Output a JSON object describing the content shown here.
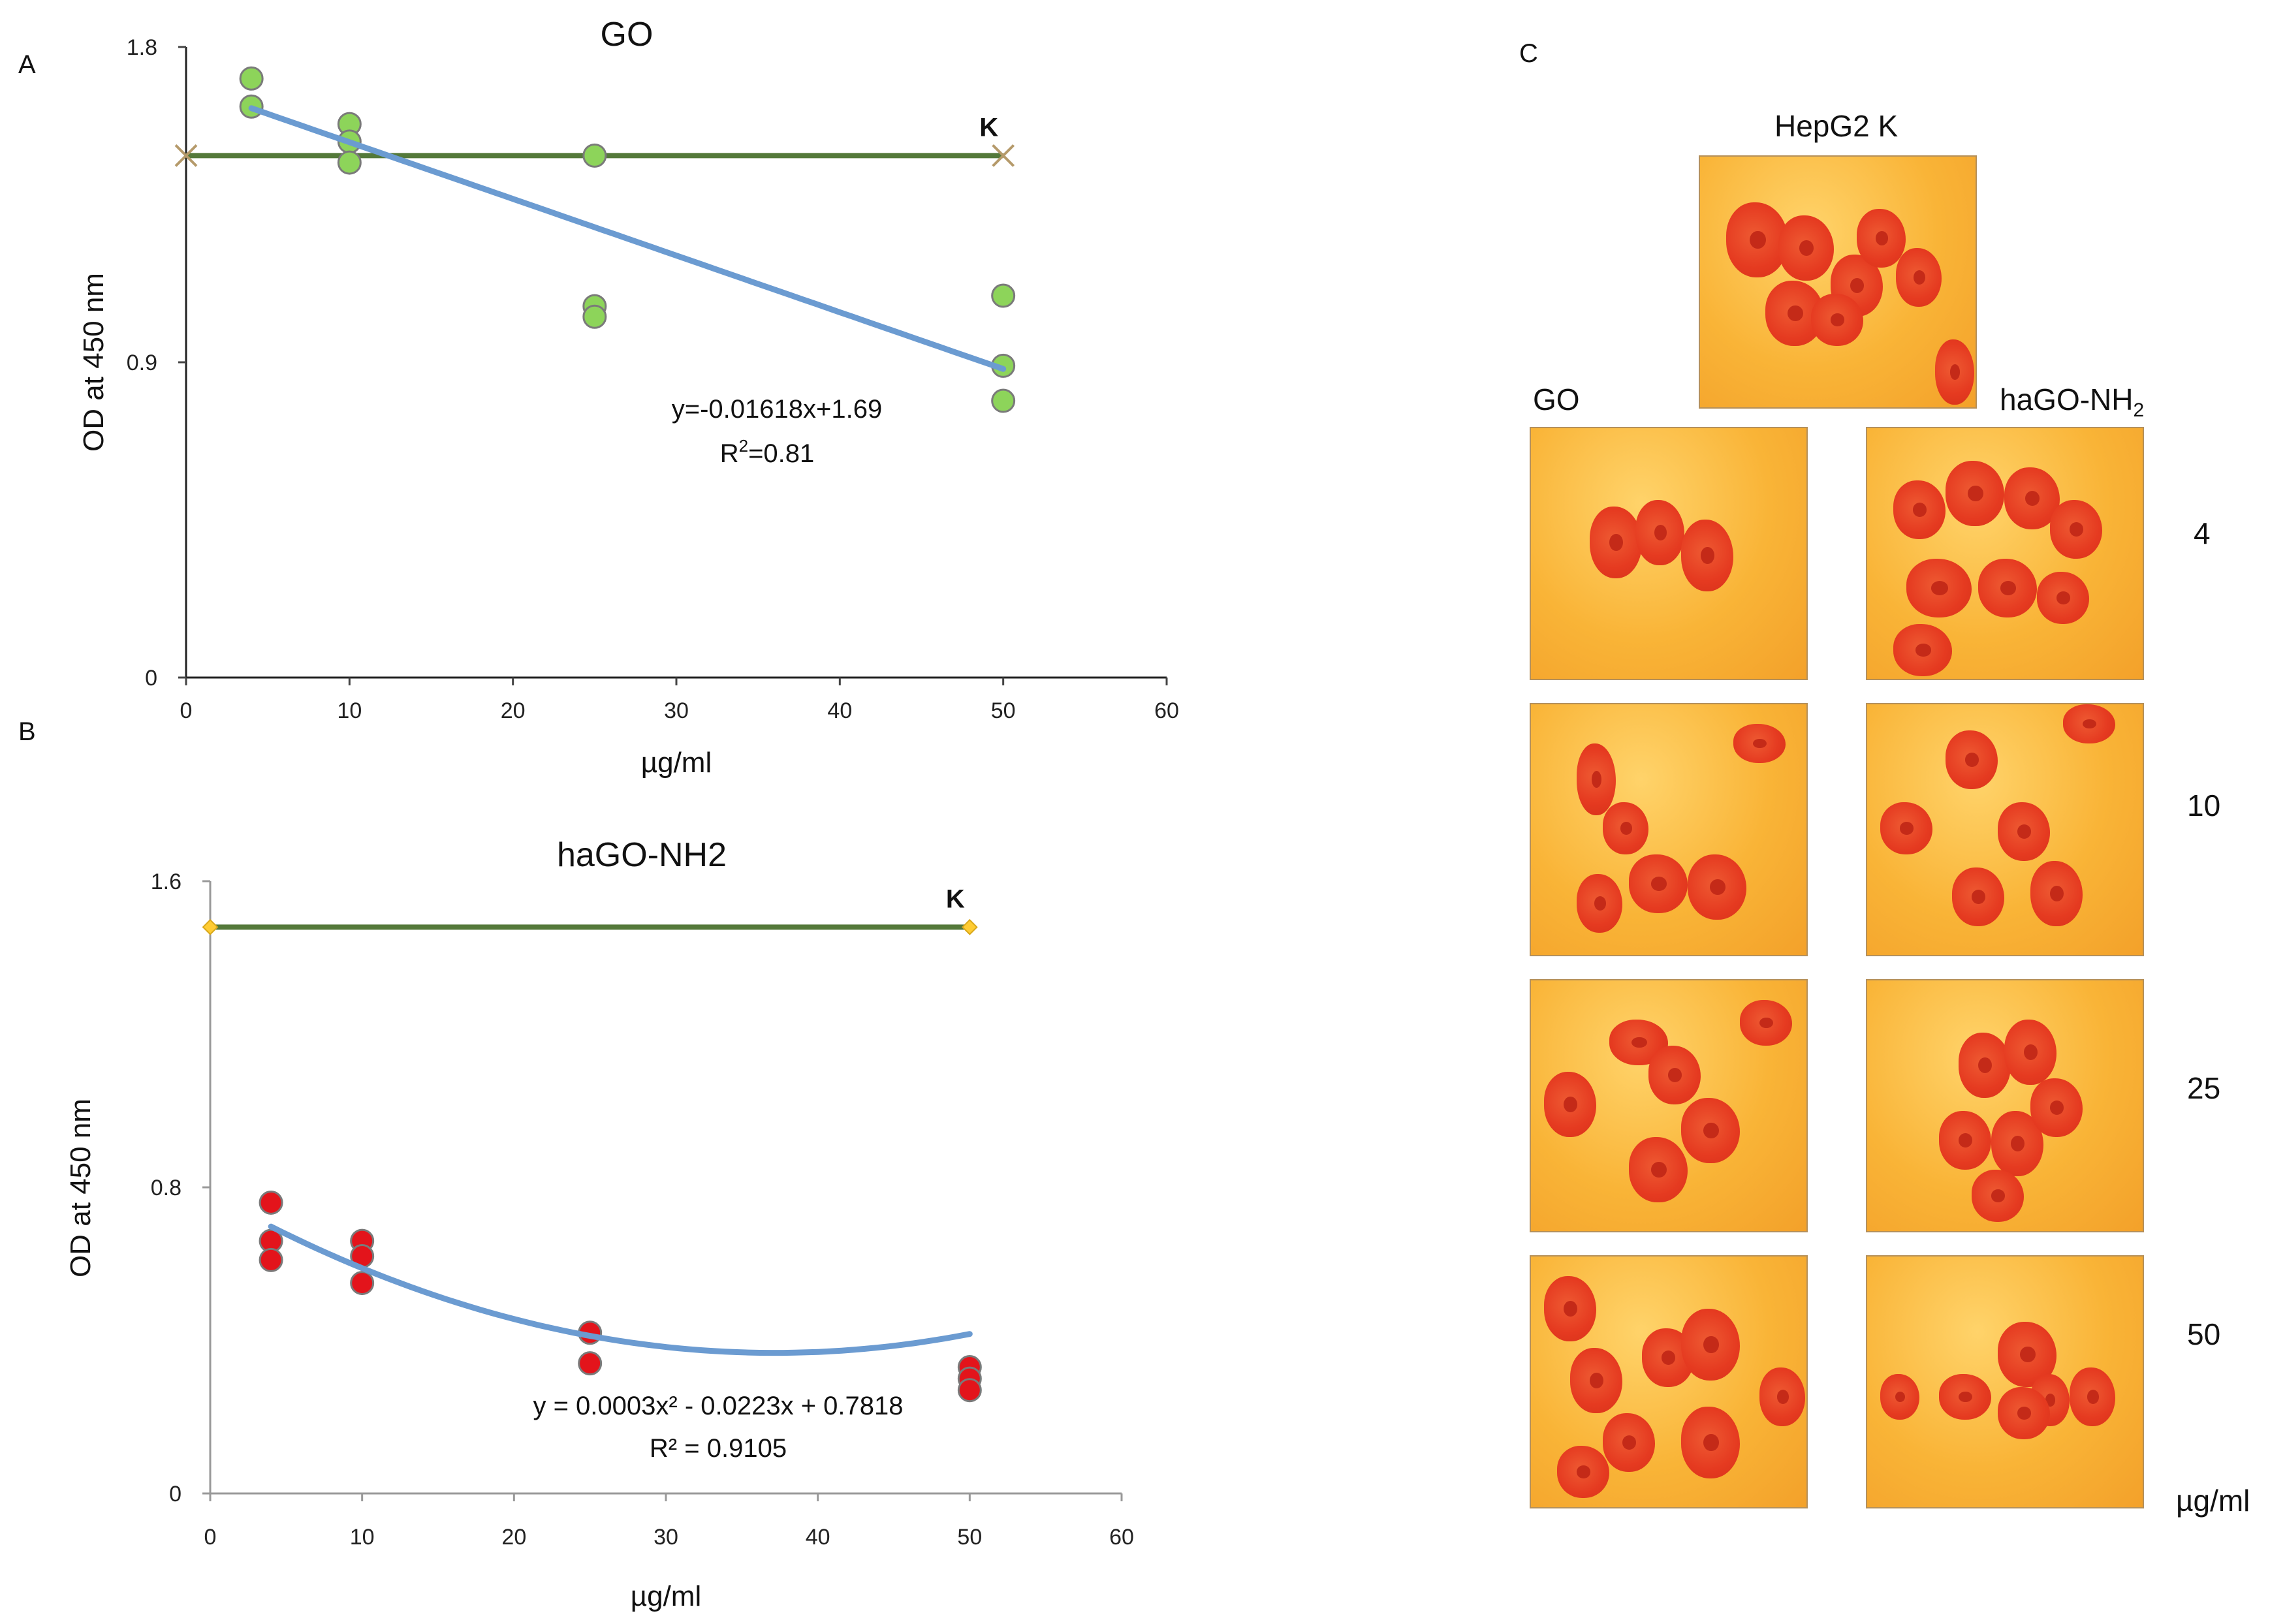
{
  "panels": {
    "a": "A",
    "b": "B",
    "c": "C"
  },
  "colors": {
    "fit_line": "#6b9bd1",
    "control_line": "#54793a",
    "go_points": "#8dd45a",
    "hago_points": "#e3141b",
    "control_marker_a": "#b59a6a",
    "control_marker_b": "#ffcc33"
  },
  "chart_data": [
    {
      "type": "scatter",
      "title": "GO",
      "xlabel": "µg/ml",
      "ylabel": "OD at 450 nm",
      "xlim": [
        0,
        60
      ],
      "ylim": [
        0,
        1.8
      ],
      "xticks": [
        "0",
        "10",
        "20",
        "30",
        "40",
        "50",
        "60"
      ],
      "yticks": [
        "0",
        "0.9",
        "1.8"
      ],
      "points": [
        {
          "x": 4,
          "y": 1.71
        },
        {
          "x": 4,
          "y": 1.63
        },
        {
          "x": 10,
          "y": 1.58
        },
        {
          "x": 10,
          "y": 1.53
        },
        {
          "x": 10,
          "y": 1.47
        },
        {
          "x": 25,
          "y": 1.49
        },
        {
          "x": 25,
          "y": 1.06
        },
        {
          "x": 25,
          "y": 1.03
        },
        {
          "x": 50,
          "y": 1.09
        },
        {
          "x": 50,
          "y": 0.89
        },
        {
          "x": 50,
          "y": 0.79
        }
      ],
      "fit": {
        "kind": "linear",
        "slope": -0.01618,
        "intercept": 1.69,
        "x_range": [
          4,
          50
        ]
      },
      "control": {
        "label": "K",
        "y": 1.49,
        "x_range": [
          0,
          50
        ],
        "marker": "x"
      },
      "equation": "y=-0.01618x+1.69",
      "r2_prefix": "R",
      "r2_sup": "2",
      "r2_suffix": "=0.81"
    },
    {
      "type": "scatter",
      "title": "haGO-NH2",
      "xlabel": "µg/ml",
      "ylabel": "OD at 450 nm",
      "xlim": [
        0,
        60
      ],
      "ylim": [
        0,
        1.6
      ],
      "xticks": [
        "0",
        "10",
        "20",
        "30",
        "40",
        "50",
        "60"
      ],
      "yticks": [
        "0",
        "0.8",
        "1.6"
      ],
      "points": [
        {
          "x": 4,
          "y": 0.76
        },
        {
          "x": 4,
          "y": 0.66
        },
        {
          "x": 4,
          "y": 0.61
        },
        {
          "x": 10,
          "y": 0.66
        },
        {
          "x": 10,
          "y": 0.62
        },
        {
          "x": 10,
          "y": 0.55
        },
        {
          "x": 25,
          "y": 0.42
        },
        {
          "x": 25,
          "y": 0.34
        },
        {
          "x": 50,
          "y": 0.33
        },
        {
          "x": 50,
          "y": 0.3
        },
        {
          "x": 50,
          "y": 0.27
        }
      ],
      "fit": {
        "kind": "quadratic",
        "a": 0.0003,
        "b": -0.0223,
        "c": 0.7818,
        "x_range": [
          4,
          50
        ]
      },
      "control": {
        "label": "K",
        "y": 1.48,
        "x_range": [
          0,
          50
        ],
        "marker": "diamond"
      },
      "equation": "y = 0.0003x² - 0.0223x + 0.7818",
      "r2_text": "R² = 0.9105"
    }
  ],
  "micrographs": {
    "control_label": "HepG2 K",
    "col_go": "GO",
    "col_hago_main": "haGO-NH",
    "col_hago_sub": "2",
    "rows": [
      "4",
      "10",
      "25",
      "50"
    ],
    "unit": "µg/ml"
  }
}
